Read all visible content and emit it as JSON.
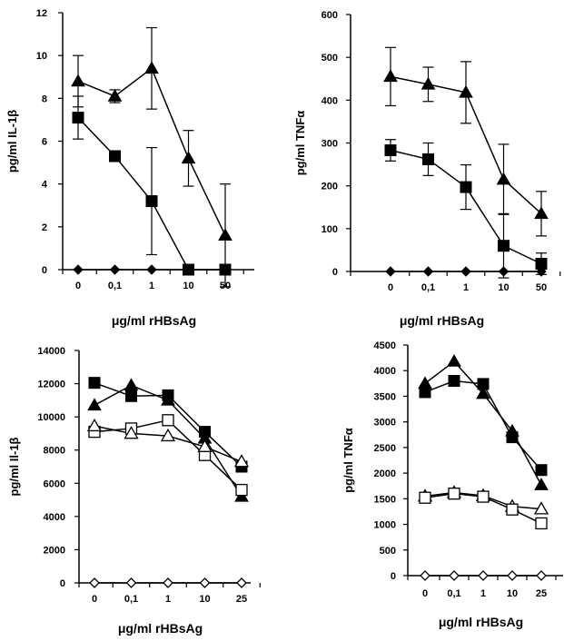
{
  "chart_data": [
    {
      "type": "line",
      "categories": [
        "0",
        "0,1",
        "1",
        "10",
        "50"
      ],
      "ylabel": "pg/ml IL-1β",
      "xlabel": "μg/ml rHBsAg",
      "ylim": [
        0,
        12
      ],
      "yticks": [
        "0",
        "2",
        "4",
        "6",
        "8",
        "10",
        "12"
      ],
      "series": [
        {
          "marker": "triangle-filled",
          "values": [
            8.8,
            8.1,
            9.4,
            5.2,
            1.6
          ],
          "err": [
            1.2,
            0.3,
            1.9,
            1.3,
            2.4
          ]
        },
        {
          "marker": "square-filled",
          "values": [
            7.1,
            5.3,
            3.2,
            0,
            0
          ],
          "err": [
            1.0,
            0.15,
            2.5,
            0,
            0
          ]
        },
        {
          "marker": "diamond-filled",
          "values": [
            0,
            0,
            0,
            0,
            0
          ]
        }
      ]
    },
    {
      "type": "line",
      "categories": [
        "0",
        "0,1",
        "1",
        "10",
        "50"
      ],
      "ylabel": "pg/ml TNFα",
      "xlabel": "μg/ml rHBsAg",
      "ylim": [
        0,
        600
      ],
      "yticks": [
        "0",
        "100",
        "200",
        "300",
        "400",
        "500",
        "600"
      ],
      "series": [
        {
          "marker": "triangle-filled",
          "values": [
            455,
            437,
            418,
            215,
            135
          ],
          "err": [
            68,
            40,
            72,
            82,
            52
          ]
        },
        {
          "marker": "square-filled",
          "values": [
            283,
            262,
            197,
            60,
            18
          ],
          "err": [
            25,
            38,
            52,
            75,
            25
          ]
        },
        {
          "marker": "diamond-filled",
          "values": [
            0,
            0,
            0,
            0,
            0
          ]
        }
      ]
    },
    {
      "type": "line",
      "categories": [
        "0",
        "0,1",
        "1",
        "10",
        "25"
      ],
      "ylabel": "pg/ml Il-1β",
      "xlabel": "μg/ml rHBsAg",
      "ylim": [
        0,
        14000
      ],
      "yticks": [
        "0",
        "2000",
        "4000",
        "6000",
        "8000",
        "10000",
        "12000",
        "14000"
      ],
      "series": [
        {
          "marker": "square-filled",
          "values": [
            12050,
            11250,
            11300,
            9100,
            7000
          ]
        },
        {
          "marker": "triangle-filled",
          "values": [
            10700,
            11900,
            11000,
            8700,
            5200
          ]
        },
        {
          "marker": "square-open",
          "values": [
            9100,
            9300,
            9800,
            7700,
            5600
          ]
        },
        {
          "marker": "triangle-open",
          "values": [
            9450,
            9000,
            8850,
            8200,
            7300
          ]
        },
        {
          "marker": "diamond-open",
          "values": [
            0,
            0,
            0,
            0,
            0
          ]
        }
      ]
    },
    {
      "type": "line",
      "categories": [
        "0",
        "0,1",
        "1",
        "10",
        "25"
      ],
      "ylabel": "pg/ml TNFα",
      "xlabel": "μg/ml rHBsAg",
      "ylim": [
        0,
        4500
      ],
      "yticks": [
        "0",
        "500",
        "1000",
        "1500",
        "2000",
        "2500",
        "3000",
        "3500",
        "4000",
        "4500"
      ],
      "series": [
        {
          "marker": "triangle-filled",
          "values": [
            3750,
            4180,
            3550,
            2820,
            1770
          ]
        },
        {
          "marker": "square-filled",
          "values": [
            3580,
            3800,
            3740,
            2700,
            2060
          ]
        },
        {
          "marker": "triangle-open",
          "values": [
            1550,
            1620,
            1560,
            1350,
            1300
          ]
        },
        {
          "marker": "square-open",
          "values": [
            1520,
            1600,
            1540,
            1290,
            1020
          ]
        },
        {
          "marker": "diamond-open",
          "values": [
            0,
            0,
            0,
            0,
            0
          ]
        }
      ]
    }
  ]
}
